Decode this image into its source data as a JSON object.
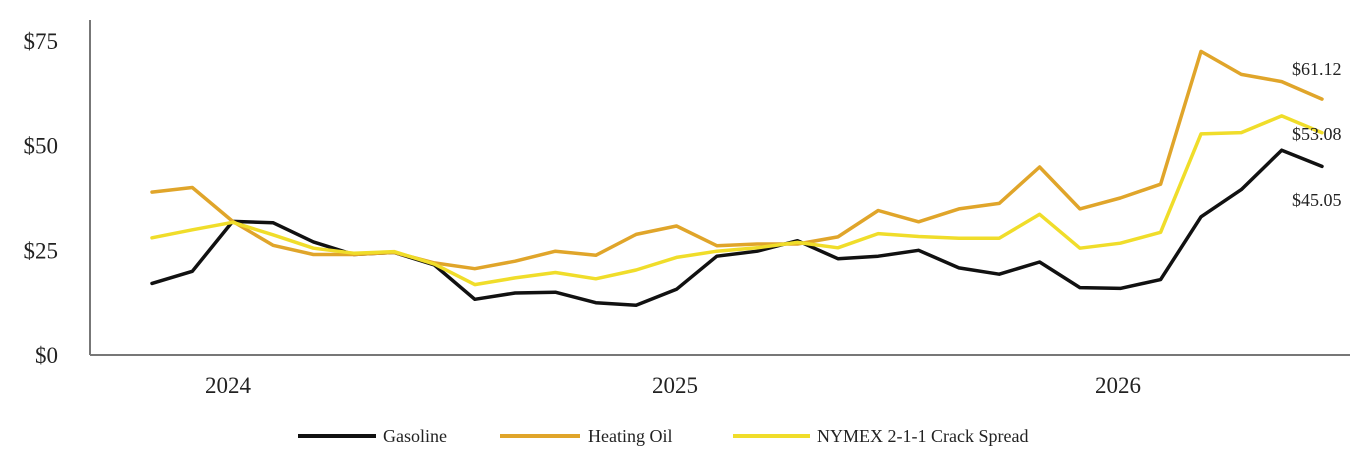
{
  "chart_data": {
    "type": "line",
    "x_tick_labels": [
      "2024",
      "2025",
      "2026"
    ],
    "y_ticks": [
      0,
      25,
      50,
      75
    ],
    "y_tick_labels": [
      "$0",
      "$25",
      "$50",
      "$75"
    ],
    "ylim": [
      0,
      80
    ],
    "grid": false,
    "legend_position": "bottom",
    "series": [
      {
        "name": "Gasoline",
        "color": "#111111",
        "values": [
          17.1,
          20.0,
          31.9,
          31.6,
          27.0,
          24.0,
          24.5,
          21.5,
          13.3,
          14.8,
          15.0,
          12.5,
          11.9,
          15.7,
          23.6,
          24.8,
          27.3,
          23.0,
          23.6,
          25.0,
          20.8,
          19.3,
          22.2,
          16.1,
          15.9,
          18.0,
          33.0,
          39.5,
          48.9,
          45.05
        ],
        "end_label": "$45.05"
      },
      {
        "name": "Heating Oil",
        "color": "#E0A52A",
        "values": [
          38.9,
          40.0,
          31.9,
          26.2,
          24.0,
          24.0,
          24.5,
          22.0,
          20.6,
          22.4,
          24.8,
          23.8,
          28.8,
          30.8,
          26.1,
          26.5,
          26.5,
          28.2,
          34.5,
          31.8,
          34.9,
          36.2,
          44.9,
          34.9,
          37.5,
          40.8,
          72.5,
          67.0,
          65.3,
          61.12
        ],
        "end_label": "$61.12"
      },
      {
        "name": "NYMEX 2-1-1 Crack Spread",
        "color": "#F0DD2A",
        "values": [
          28.0,
          29.9,
          31.7,
          28.7,
          25.5,
          24.3,
          24.7,
          21.7,
          16.8,
          18.4,
          19.7,
          18.2,
          20.3,
          23.3,
          24.8,
          25.6,
          26.9,
          25.6,
          29.0,
          28.3,
          27.9,
          27.9,
          33.6,
          25.5,
          26.7,
          29.3,
          52.8,
          53.1,
          57.1,
          53.08
        ],
        "end_label": "$53.08"
      }
    ]
  }
}
